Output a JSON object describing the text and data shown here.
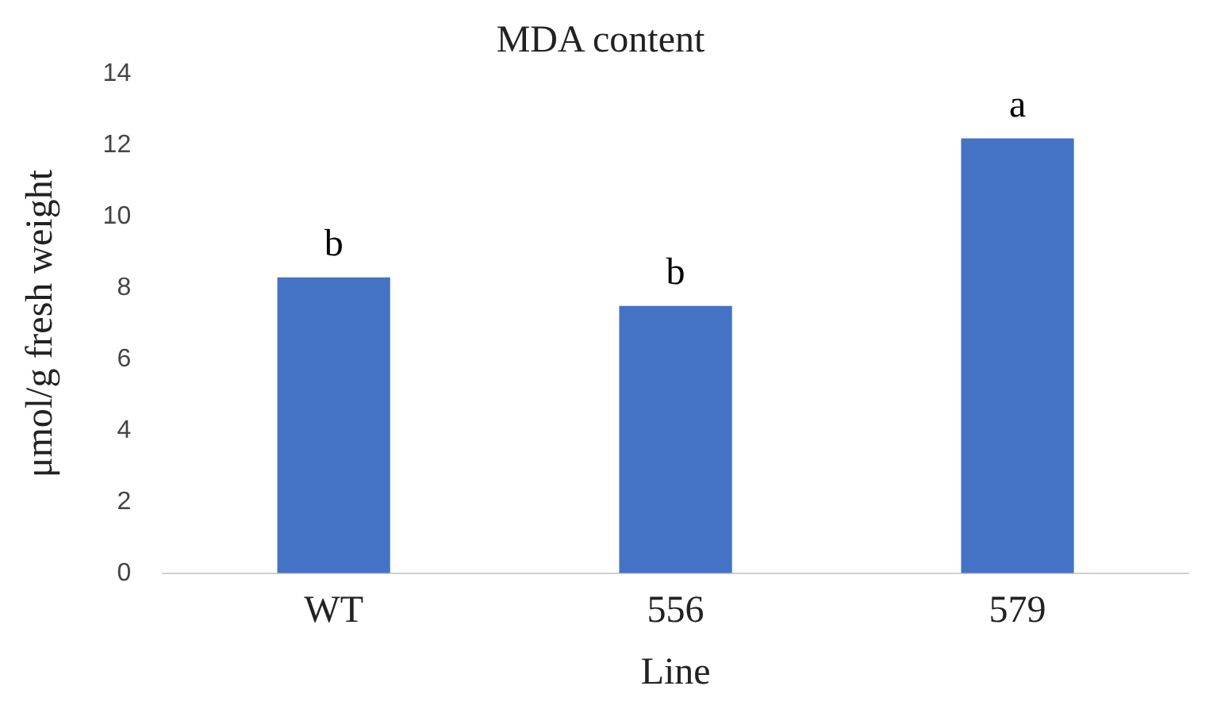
{
  "chart_data": {
    "type": "bar",
    "title": "MDA content",
    "xlabel": "Line",
    "ylabel": "μmol/g fresh weight",
    "categories": [
      "WT",
      "556",
      "579"
    ],
    "values": [
      8.3,
      7.5,
      12.2
    ],
    "color": "#4472c4",
    "ylim": [
      0,
      14
    ],
    "yticks": [
      0,
      2,
      4,
      6,
      8,
      10,
      12,
      14
    ],
    "grid": false,
    "legend": false,
    "annotations": [
      {
        "text": "b",
        "x": "WT",
        "y": 8.3
      },
      {
        "text": "b",
        "x": "556",
        "y": 7.5
      },
      {
        "text": "a",
        "x": "579",
        "y": 12.2
      }
    ]
  }
}
